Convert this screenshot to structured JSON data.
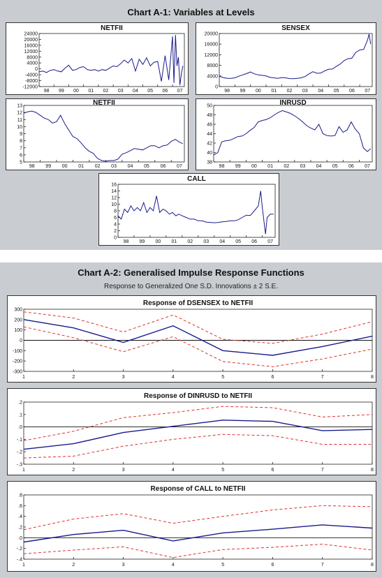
{
  "figure1": {
    "title": "Chart A-1: Variables at Levels",
    "years": [
      "98",
      "99",
      "00",
      "01",
      "02",
      "03",
      "04",
      "05",
      "06",
      "07"
    ]
  },
  "figure2": {
    "title": "Chart A-2: Generalised Impulse Response Functions",
    "subtitle": "Response to Generalized One S.D. Innovations ± 2 S.E."
  },
  "colors": {
    "line": "#1a1a8c",
    "band": "#e03030",
    "panel_bg": "#c9ccd1",
    "plot_bg": "#ffffff"
  },
  "chart_data": [
    {
      "type": "line",
      "title": "NETFII",
      "x_ticks": [
        "98",
        "99",
        "00",
        "01",
        "02",
        "03",
        "04",
        "05",
        "06",
        "07"
      ],
      "xlim": [
        1998,
        2007.8
      ],
      "y_ticks": [
        "24000",
        "20000",
        "16000",
        "12000",
        "8000",
        "4000",
        "0",
        "-4000",
        "-8000",
        "-12000"
      ],
      "ylim": [
        -12000,
        24000
      ],
      "series": [
        {
          "x": [
            1998,
            1998.25,
            1998.5,
            1998.75,
            1999,
            1999.25,
            1999.5,
            1999.75,
            2000,
            2000.25,
            2000.5,
            2000.75,
            2001,
            2001.25,
            2001.5,
            2001.75,
            2002,
            2002.25,
            2002.5,
            2002.75,
            2003,
            2003.25,
            2003.5,
            2003.75,
            2004,
            2004.25,
            2004.5,
            2004.75,
            2005,
            2005.25,
            2005.5,
            2005.75,
            2006,
            2006.25,
            2006.5,
            2006.75,
            2007,
            2007.1,
            2007.2,
            2007.3,
            2007.4,
            2007.5,
            2007.6,
            2007.7
          ],
          "values": [
            -2000,
            -1500,
            -2500,
            -1000,
            -500,
            -1500,
            -2000,
            500,
            2500,
            -1000,
            -500,
            1000,
            1500,
            -500,
            -1000,
            -500,
            -1500,
            -500,
            -1000,
            500,
            2000,
            1500,
            3500,
            6000,
            4000,
            7000,
            -1500,
            6500,
            3000,
            7500,
            2000,
            4500,
            5000,
            -8500,
            9000,
            -7500,
            22000,
            -9500,
            23000,
            2000,
            8000,
            -11000,
            -3000,
            2000
          ]
        }
      ]
    },
    {
      "type": "line",
      "title": "SENSEX",
      "x_ticks": [
        "98",
        "99",
        "00",
        "01",
        "02",
        "03",
        "04",
        "05",
        "06",
        "07"
      ],
      "xlim": [
        1998,
        2007.8
      ],
      "y_ticks": [
        "20000",
        "16000",
        "12000",
        "8000",
        "4000",
        "0"
      ],
      "ylim": [
        0,
        20000
      ],
      "series": [
        {
          "x": [
            1998,
            1998.25,
            1998.5,
            1998.75,
            1999,
            1999.25,
            1999.5,
            1999.75,
            2000,
            2000.25,
            2000.5,
            2000.75,
            2001,
            2001.25,
            2001.5,
            2001.75,
            2002,
            2002.25,
            2002.5,
            2002.75,
            2003,
            2003.25,
            2003.5,
            2003.75,
            2004,
            2004.25,
            2004.5,
            2004.75,
            2005,
            2005.25,
            2005.5,
            2005.75,
            2006,
            2006.25,
            2006.5,
            2006.75,
            2007,
            2007.25,
            2007.5,
            2007.6,
            2007.7
          ],
          "values": [
            3900,
            3400,
            3100,
            3100,
            3300,
            3900,
            4400,
            4900,
            5500,
            4800,
            4400,
            4200,
            4000,
            3500,
            3300,
            3100,
            3400,
            3300,
            3000,
            2950,
            3100,
            3300,
            3800,
            4800,
            5600,
            5000,
            5100,
            5900,
            6500,
            6600,
            7600,
            8500,
            9800,
            10500,
            10700,
            12900,
            13800,
            14000,
            17500,
            19800,
            16000
          ]
        }
      ]
    },
    {
      "type": "line",
      "title": "NETFII",
      "x_ticks": [
        "98",
        "99",
        "00",
        "01",
        "02",
        "03",
        "04",
        "05",
        "06",
        "07"
      ],
      "xlim": [
        1998,
        2007.8
      ],
      "y_ticks": [
        "13",
        "12",
        "11",
        "10",
        "9",
        "8",
        "7",
        "6",
        "5"
      ],
      "ylim": [
        5,
        13
      ],
      "series": [
        {
          "x": [
            1998,
            1998.25,
            1998.5,
            1998.75,
            1999,
            1999.25,
            1999.5,
            1999.75,
            2000,
            2000.25,
            2000.5,
            2000.75,
            2001,
            2001.25,
            2001.5,
            2001.75,
            2002,
            2002.25,
            2002.5,
            2002.75,
            2003,
            2003.25,
            2003.5,
            2003.75,
            2004,
            2004.25,
            2004.5,
            2004.75,
            2005,
            2005.25,
            2005.5,
            2005.75,
            2006,
            2006.25,
            2006.5,
            2006.75,
            2007,
            2007.25,
            2007.5,
            2007.7
          ],
          "values": [
            11.9,
            12.1,
            12.2,
            12.0,
            11.6,
            11.2,
            11.0,
            10.5,
            10.7,
            11.6,
            10.4,
            9.5,
            8.6,
            8.3,
            7.7,
            7.0,
            6.5,
            6.2,
            5.5,
            5.2,
            5.1,
            5.2,
            5.2,
            5.4,
            6.1,
            6.3,
            6.6,
            6.9,
            6.8,
            6.7,
            7.0,
            7.3,
            7.3,
            7.0,
            7.3,
            7.4,
            7.9,
            8.2,
            7.8,
            7.6
          ]
        }
      ]
    },
    {
      "type": "line",
      "title": "INRUSD",
      "x_ticks": [
        "98",
        "99",
        "00",
        "01",
        "02",
        "03",
        "04",
        "05",
        "06",
        "07"
      ],
      "xlim": [
        1998,
        2007.8
      ],
      "y_ticks": [
        "50",
        "48",
        "46",
        "44",
        "42",
        "40",
        "38"
      ],
      "ylim": [
        38,
        50
      ],
      "series": [
        {
          "x": [
            1998,
            1998.25,
            1998.5,
            1998.75,
            1999,
            1999.25,
            1999.5,
            1999.75,
            2000,
            2000.25,
            2000.5,
            2000.75,
            2001,
            2001.25,
            2001.5,
            2001.75,
            2002,
            2002.25,
            2002.5,
            2002.75,
            2003,
            2003.25,
            2003.5,
            2003.75,
            2004,
            2004.25,
            2004.5,
            2004.75,
            2005,
            2005.25,
            2005.5,
            2005.75,
            2006,
            2006.25,
            2006.5,
            2006.75,
            2007,
            2007.25,
            2007.5,
            2007.7
          ],
          "values": [
            39.5,
            40.0,
            42.3,
            42.5,
            42.6,
            43.0,
            43.4,
            43.5,
            44.0,
            44.7,
            45.3,
            46.5,
            46.8,
            47.0,
            47.4,
            48.0,
            48.5,
            48.9,
            48.6,
            48.3,
            47.8,
            47.2,
            46.5,
            45.7,
            45.2,
            44.8,
            46.0,
            44.0,
            43.6,
            43.5,
            43.6,
            45.5,
            44.3,
            44.8,
            46.5,
            45.0,
            44.0,
            41.0,
            40.2,
            40.8
          ]
        }
      ]
    },
    {
      "type": "line",
      "title": "CALL",
      "x_ticks": [
        "98",
        "99",
        "00",
        "01",
        "02",
        "03",
        "04",
        "05",
        "06",
        "07"
      ],
      "xlim": [
        1998,
        2007.8
      ],
      "y_ticks": [
        "16",
        "14",
        "12",
        "10",
        "8",
        "6",
        "4",
        "2",
        "0"
      ],
      "ylim": [
        0,
        16
      ],
      "series": [
        {
          "x": [
            1998,
            1998.2,
            1998.4,
            1998.6,
            1998.8,
            1999,
            1999.2,
            1999.4,
            1999.6,
            1999.8,
            2000,
            2000.2,
            2000.4,
            2000.6,
            2000.8,
            2001,
            2001.2,
            2001.4,
            2001.6,
            2001.8,
            2002,
            2002.25,
            2002.5,
            2002.75,
            2003,
            2003.25,
            2003.5,
            2003.75,
            2004,
            2004.25,
            2004.5,
            2004.75,
            2005,
            2005.25,
            2005.5,
            2005.75,
            2006,
            2006.25,
            2006.5,
            2006.75,
            2006.9,
            2007,
            2007.1,
            2007.2,
            2007.3,
            2007.5,
            2007.7
          ],
          "values": [
            6.5,
            5.5,
            8.5,
            7.5,
            9.5,
            8.0,
            9.0,
            8.0,
            10.5,
            7.5,
            9.0,
            8.0,
            12.5,
            7.5,
            8.5,
            8.0,
            7.0,
            7.5,
            6.5,
            7.0,
            6.5,
            6.0,
            5.5,
            5.5,
            5.0,
            5.0,
            4.6,
            4.5,
            4.4,
            4.5,
            4.7,
            4.8,
            5.0,
            5.0,
            5.3,
            6.0,
            6.7,
            6.6,
            8.0,
            9.5,
            14.0,
            9.0,
            5.0,
            1.0,
            6.0,
            7.0,
            7.0
          ]
        }
      ]
    },
    {
      "type": "line",
      "title": "Response of DSENSEX to NETFII",
      "x": [
        1,
        2,
        3,
        4,
        5,
        6,
        7,
        8
      ],
      "y_ticks": [
        "300",
        "200",
        "100",
        "0",
        "-100",
        "-200",
        "-300"
      ],
      "ylim": [
        -300,
        300
      ],
      "series": [
        {
          "values": [
            200,
            120,
            -20,
            140,
            -100,
            -145,
            -60,
            40
          ]
        },
        {
          "values": [
            275,
            215,
            80,
            245,
            10,
            -30,
            60,
            180
          ]
        },
        {
          "values": [
            130,
            25,
            -110,
            35,
            -205,
            -255,
            -180,
            -85
          ]
        }
      ]
    },
    {
      "type": "line",
      "title": "Response of DINRUSD to NETFII",
      "x": [
        1,
        2,
        3,
        4,
        5,
        6,
        7,
        8
      ],
      "y_ticks": [
        ".2",
        ".1",
        ".0",
        "-.1",
        "-.2",
        "-.3"
      ],
      "ylim": [
        -0.3,
        0.2
      ],
      "series": [
        {
          "values": [
            -0.18,
            -0.135,
            -0.045,
            0.005,
            0.055,
            0.045,
            -0.03,
            -0.02
          ]
        },
        {
          "values": [
            -0.11,
            -0.035,
            0.075,
            0.115,
            0.165,
            0.155,
            0.08,
            0.1
          ]
        },
        {
          "values": [
            -0.25,
            -0.235,
            -0.155,
            -0.1,
            -0.06,
            -0.07,
            -0.14,
            -0.14
          ]
        }
      ]
    },
    {
      "type": "line",
      "title": "Response of CALL to NETFII",
      "x": [
        1,
        2,
        3,
        4,
        5,
        6,
        7,
        8
      ],
      "y_ticks": [
        ".8",
        ".6",
        ".4",
        ".2",
        ".0",
        "-.2",
        "-.4"
      ],
      "ylim": [
        -0.4,
        0.8
      ],
      "series": [
        {
          "values": [
            -0.08,
            0.06,
            0.14,
            -0.06,
            0.09,
            0.16,
            0.24,
            0.18
          ]
        },
        {
          "values": [
            0.15,
            0.35,
            0.45,
            0.27,
            0.4,
            0.52,
            0.6,
            0.58
          ]
        },
        {
          "values": [
            -0.3,
            -0.23,
            -0.17,
            -0.37,
            -0.22,
            -0.18,
            -0.12,
            -0.23
          ]
        }
      ]
    }
  ]
}
